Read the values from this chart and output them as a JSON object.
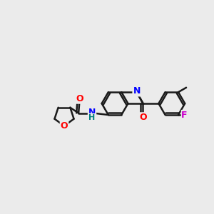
{
  "bg_color": "#ebebeb",
  "bond_color": "#1a1a1a",
  "bond_width": 1.8,
  "figsize": [
    3.0,
    3.0
  ],
  "dpi": 100,
  "xlim": [
    0,
    12
  ],
  "ylim": [
    0,
    10
  ]
}
